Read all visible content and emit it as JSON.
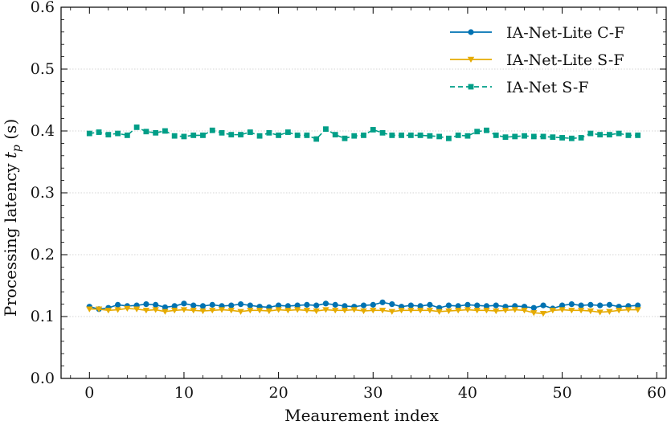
{
  "chart_data": {
    "type": "line",
    "title": "",
    "xlabel": "Meaurement index",
    "ylabel_main": "Processing latency ",
    "ylabel_var": "t",
    "ylabel_sub": "p",
    "ylabel_unit": " (s)",
    "xlim": [
      -3,
      61
    ],
    "ylim": [
      0,
      0.6
    ],
    "xticks": [
      0,
      10,
      20,
      30,
      40,
      50,
      60
    ],
    "xtick_labels": [
      "0",
      "10",
      "20",
      "30",
      "40",
      "50",
      "60"
    ],
    "yticks": [
      0,
      0.1,
      0.2,
      0.3,
      0.4,
      0.5,
      0.6
    ],
    "ytick_labels": [
      "0.0",
      "0.1",
      "0.2",
      "0.3",
      "0.4",
      "0.5",
      "0.6"
    ],
    "grid": "horizontal-dotted",
    "legend_position": "top-right",
    "x": [
      0,
      1,
      2,
      3,
      4,
      5,
      6,
      7,
      8,
      9,
      10,
      11,
      12,
      13,
      14,
      15,
      16,
      17,
      18,
      19,
      20,
      21,
      22,
      23,
      24,
      25,
      26,
      27,
      28,
      29,
      30,
      31,
      32,
      33,
      34,
      35,
      36,
      37,
      38,
      39,
      40,
      41,
      42,
      43,
      44,
      45,
      46,
      47,
      48,
      49,
      50,
      51,
      52,
      53,
      54,
      55,
      56,
      57,
      58
    ],
    "series": [
      {
        "name": "IA-Net-Lite C-F",
        "color": "#0072b2",
        "marker": "circle",
        "linestyle": "solid",
        "values": [
          0.116,
          0.112,
          0.114,
          0.119,
          0.117,
          0.118,
          0.12,
          0.119,
          0.115,
          0.117,
          0.121,
          0.118,
          0.117,
          0.119,
          0.117,
          0.118,
          0.12,
          0.118,
          0.116,
          0.115,
          0.118,
          0.117,
          0.118,
          0.119,
          0.118,
          0.121,
          0.119,
          0.117,
          0.116,
          0.118,
          0.119,
          0.123,
          0.12,
          0.116,
          0.118,
          0.117,
          0.119,
          0.114,
          0.118,
          0.117,
          0.119,
          0.118,
          0.117,
          0.118,
          0.116,
          0.117,
          0.116,
          0.114,
          0.118,
          0.113,
          0.118,
          0.12,
          0.118,
          0.119,
          0.118,
          0.119,
          0.116,
          0.117,
          0.118
        ]
      },
      {
        "name": "IA-Net-Lite S-F",
        "color": "#e6ab02",
        "marker": "triangle-down",
        "linestyle": "solid",
        "values": [
          0.112,
          0.112,
          0.11,
          0.111,
          0.113,
          0.112,
          0.11,
          0.111,
          0.108,
          0.11,
          0.111,
          0.11,
          0.109,
          0.11,
          0.111,
          0.11,
          0.108,
          0.11,
          0.11,
          0.109,
          0.111,
          0.11,
          0.111,
          0.11,
          0.109,
          0.111,
          0.11,
          0.11,
          0.111,
          0.109,
          0.11,
          0.11,
          0.108,
          0.11,
          0.11,
          0.11,
          0.11,
          0.108,
          0.109,
          0.11,
          0.111,
          0.11,
          0.11,
          0.109,
          0.11,
          0.111,
          0.11,
          0.106,
          0.105,
          0.11,
          0.111,
          0.11,
          0.11,
          0.109,
          0.107,
          0.108,
          0.11,
          0.111,
          0.111
        ]
      },
      {
        "name": "IA-Net S-F",
        "color": "#009e87",
        "marker": "square",
        "linestyle": "dashed",
        "values": [
          0.396,
          0.398,
          0.394,
          0.396,
          0.393,
          0.406,
          0.399,
          0.397,
          0.4,
          0.392,
          0.391,
          0.393,
          0.393,
          0.401,
          0.397,
          0.394,
          0.394,
          0.398,
          0.392,
          0.397,
          0.393,
          0.398,
          0.393,
          0.393,
          0.387,
          0.403,
          0.394,
          0.388,
          0.392,
          0.393,
          0.402,
          0.397,
          0.393,
          0.393,
          0.393,
          0.393,
          0.392,
          0.391,
          0.388,
          0.393,
          0.392,
          0.399,
          0.401,
          0.393,
          0.39,
          0.391,
          0.392,
          0.391,
          0.391,
          0.39,
          0.389,
          0.388,
          0.389,
          0.396,
          0.394,
          0.394,
          0.396,
          0.393,
          0.393
        ]
      }
    ]
  }
}
